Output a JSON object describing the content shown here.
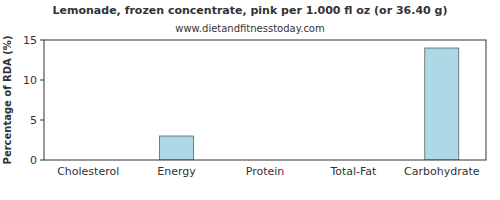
{
  "chart_data": {
    "type": "bar",
    "title": "Lemonade, frozen concentrate, pink per 1.000 fl oz (or 36.40 g)",
    "subtitle": "www.dietandfitnesstoday.com",
    "y_label": "Percentage of RDA (%)",
    "categories": [
      "Cholesterol",
      "Energy",
      "Protein",
      "Total-Fat",
      "Carbohydrate"
    ],
    "values": [
      0,
      3,
      0,
      0,
      14
    ],
    "color": "#add8e6",
    "ylim": [
      0,
      15
    ],
    "yticks": [
      0,
      5,
      10,
      15
    ],
    "grid": false
  }
}
